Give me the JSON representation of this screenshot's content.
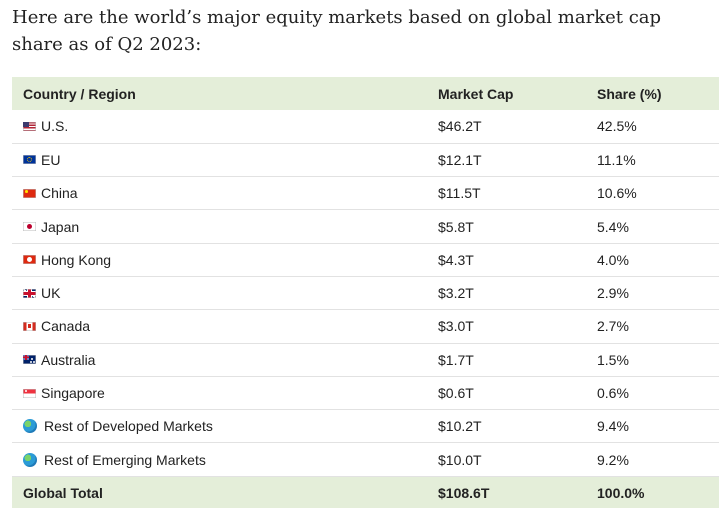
{
  "intro": "Here are the world’s major equity markets based on global market cap share as of Q2 2023:",
  "table": {
    "headers": [
      "Country / Region",
      "Market Cap",
      "Share (%)"
    ],
    "rows": [
      {
        "name": "U.S.",
        "icon": "flag-us-icon",
        "cap": "$46.2T",
        "share": "42.5%"
      },
      {
        "name": "EU",
        "icon": "flag-eu-icon",
        "cap": "$12.1T",
        "share": "11.1%"
      },
      {
        "name": "China",
        "icon": "flag-china-icon",
        "cap": "$11.5T",
        "share": "10.6%"
      },
      {
        "name": "Japan",
        "icon": "flag-japan-icon",
        "cap": "$5.8T",
        "share": "5.4%"
      },
      {
        "name": "Hong Kong",
        "icon": "flag-hong-kong-icon",
        "cap": "$4.3T",
        "share": "4.0%"
      },
      {
        "name": "UK",
        "icon": "flag-uk-icon",
        "cap": "$3.2T",
        "share": "2.9%"
      },
      {
        "name": "Canada",
        "icon": "flag-canada-icon",
        "cap": "$3.0T",
        "share": "2.7%"
      },
      {
        "name": "Australia",
        "icon": "flag-australia-icon",
        "cap": "$1.7T",
        "share": "1.5%"
      },
      {
        "name": "Singapore",
        "icon": "flag-singapore-icon",
        "cap": "$0.6T",
        "share": "0.6%"
      },
      {
        "name": "Rest of Developed Markets",
        "icon": "globe-icon",
        "cap": "$10.2T",
        "share": "9.4%"
      },
      {
        "name": "Rest of Emerging Markets",
        "icon": "globe-icon",
        "cap": "$10.0T",
        "share": "9.2%"
      }
    ],
    "total": {
      "name": "Global Total",
      "cap": "$108.6T",
      "share": "100.0%"
    }
  },
  "colors": {
    "header_bg": "#e4eed9",
    "row_border": "#e2e2e2"
  }
}
